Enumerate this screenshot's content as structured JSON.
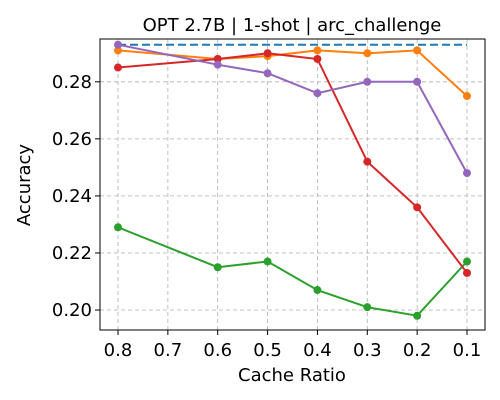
{
  "chart_data": {
    "type": "line",
    "title": "OPT 2.7B | 1-shot | arc_challenge",
    "xlabel": "Cache Ratio",
    "ylabel": "Accuracy",
    "x": [
      0.8,
      0.7,
      0.6,
      0.5,
      0.4,
      0.3,
      0.2,
      0.1
    ],
    "x_tick_labels": [
      "0.8",
      "0.7",
      "0.6",
      "0.5",
      "0.4",
      "0.3",
      "0.2",
      "0.1"
    ],
    "x_reversed": true,
    "y_ticks": [
      0.2,
      0.22,
      0.24,
      0.26,
      0.28
    ],
    "y_tick_labels": [
      "0.20",
      "0.22",
      "0.24",
      "0.26",
      "0.28"
    ],
    "xlim": [
      0.8,
      0.1
    ],
    "ylim": [
      0.193,
      0.295
    ],
    "grid": true,
    "series": [
      {
        "color": "#1f77b4",
        "style": "dashed",
        "marker": false,
        "x": [
          0.8,
          0.1
        ],
        "values": [
          0.293,
          0.293
        ]
      },
      {
        "color": "#ff7f0e",
        "style": "solid",
        "marker": true,
        "x": [
          0.8,
          0.6,
          0.5,
          0.4,
          0.3,
          0.2,
          0.1
        ],
        "values": [
          0.291,
          0.288,
          0.289,
          0.291,
          0.29,
          0.291,
          0.275
        ]
      },
      {
        "color": "#2ca02c",
        "style": "solid",
        "marker": true,
        "x": [
          0.8,
          0.6,
          0.5,
          0.4,
          0.3,
          0.2,
          0.1
        ],
        "values": [
          0.229,
          0.215,
          0.217,
          0.207,
          0.201,
          0.198,
          0.217
        ]
      },
      {
        "color": "#d62728",
        "style": "solid",
        "marker": true,
        "x": [
          0.8,
          0.6,
          0.5,
          0.4,
          0.3,
          0.2,
          0.1
        ],
        "values": [
          0.285,
          0.288,
          0.29,
          0.288,
          0.252,
          0.236,
          0.213
        ]
      },
      {
        "color": "#9467bd",
        "style": "solid",
        "marker": true,
        "x": [
          0.8,
          0.6,
          0.5,
          0.4,
          0.3,
          0.2,
          0.1
        ],
        "values": [
          0.293,
          0.286,
          0.283,
          0.276,
          0.28,
          0.28,
          0.248
        ]
      }
    ]
  }
}
